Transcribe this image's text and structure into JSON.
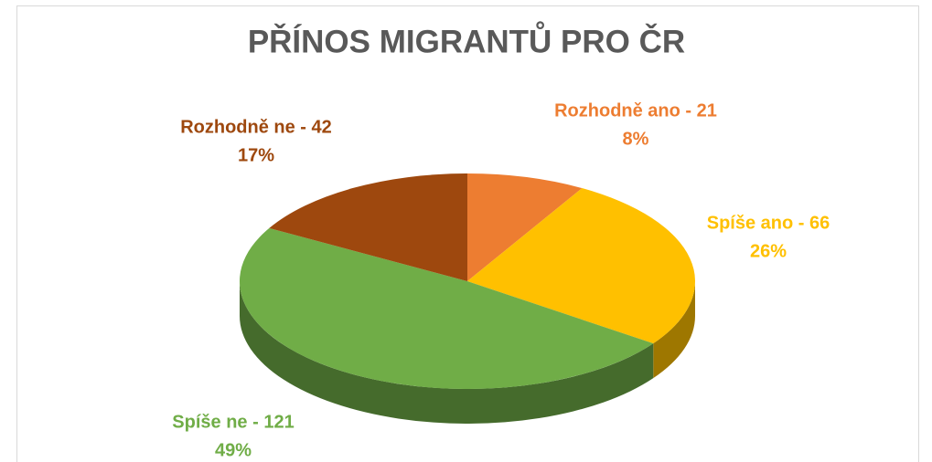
{
  "chart_data": {
    "type": "pie",
    "title": "PŘÍNOS MIGRANTŮ PRO ČR",
    "categories": [
      "Rozhodně ano",
      "Spíše ano",
      "Spíše ne",
      "Rozhodně ne"
    ],
    "values": [
      21,
      66,
      121,
      42
    ],
    "value_labels": [
      "Rozhodně ano - 21",
      "Spíše ano - 66",
      "Spíše ne - 121",
      "Rozhodně ne - 42"
    ],
    "percent_labels": [
      "8%",
      "26%",
      "49%",
      "17%"
    ],
    "colors": [
      "#ed7d31",
      "#ffc000",
      "#70ad47",
      "#9e480e"
    ]
  }
}
